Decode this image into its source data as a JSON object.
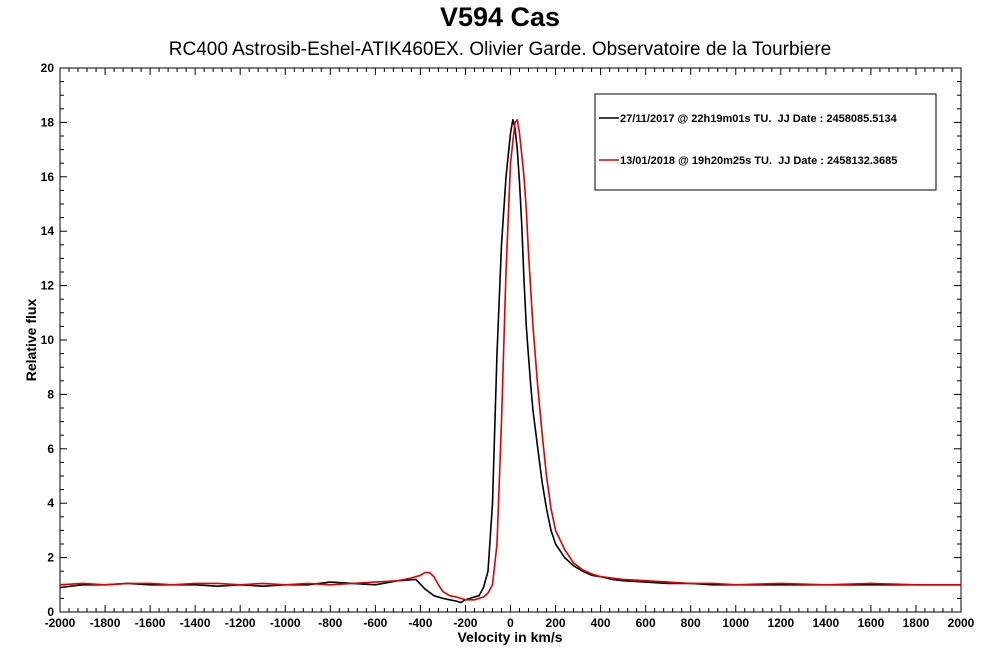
{
  "chart_data": {
    "type": "line",
    "title": "V594 Cas",
    "subtitle": "RC400 Astrosib-Eshel-ATIK460EX. Olivier Garde. Observatoire de la Tourbiere",
    "xlabel": "Velocity in km/s",
    "ylabel": "Relative flux",
    "xlim": [
      -2000,
      2000
    ],
    "ylim": [
      0,
      20
    ],
    "xticks": [
      -2000,
      -1800,
      -1600,
      -1400,
      -1200,
      -1000,
      -800,
      -600,
      -400,
      -200,
      0,
      200,
      400,
      600,
      800,
      1000,
      1200,
      1400,
      1600,
      1800,
      2000
    ],
    "yticks": [
      0,
      2,
      4,
      6,
      8,
      10,
      12,
      14,
      16,
      18,
      20
    ],
    "legend_position": "top-right",
    "series": [
      {
        "name": "27/11/2017 @ 22h19m01s TU.  JJ Date : 2458085.5134",
        "color": "#000000",
        "x": [
          -2000,
          -1900,
          -1800,
          -1700,
          -1600,
          -1500,
          -1400,
          -1300,
          -1200,
          -1100,
          -1000,
          -900,
          -800,
          -700,
          -600,
          -500,
          -420,
          -380,
          -340,
          -300,
          -270,
          -240,
          -220,
          -200,
          -180,
          -160,
          -140,
          -120,
          -100,
          -80,
          -60,
          -40,
          -20,
          0,
          10,
          20,
          30,
          40,
          50,
          60,
          70,
          80,
          90,
          100,
          120,
          140,
          160,
          180,
          200,
          240,
          280,
          320,
          360,
          400,
          450,
          500,
          600,
          700,
          800,
          900,
          1000,
          1200,
          1400,
          1600,
          1800,
          2000
        ],
        "values": [
          0.9,
          1.0,
          1.0,
          1.05,
          1.0,
          1.0,
          1.0,
          0.95,
          1.0,
          0.95,
          1.0,
          1.0,
          1.1,
          1.05,
          1.0,
          1.15,
          1.2,
          0.85,
          0.6,
          0.5,
          0.45,
          0.4,
          0.35,
          0.45,
          0.5,
          0.55,
          0.6,
          0.9,
          1.5,
          4.0,
          9.5,
          13.5,
          16.0,
          17.6,
          18.1,
          17.8,
          17.0,
          15.8,
          14.2,
          12.2,
          10.5,
          9.4,
          8.3,
          7.4,
          6.1,
          4.8,
          3.8,
          3.0,
          2.5,
          2.0,
          1.7,
          1.5,
          1.35,
          1.3,
          1.2,
          1.15,
          1.1,
          1.05,
          1.05,
          1.0,
          1.0,
          1.0,
          1.0,
          1.0,
          1.0,
          1.0
        ]
      },
      {
        "name": "13/01/2018 @ 19h20m25s TU.  JJ Date : 2458132.3685",
        "color": "#e00000",
        "x": [
          -2000,
          -1900,
          -1800,
          -1700,
          -1600,
          -1500,
          -1400,
          -1300,
          -1200,
          -1100,
          -1000,
          -900,
          -800,
          -700,
          -600,
          -500,
          -440,
          -400,
          -380,
          -360,
          -340,
          -320,
          -300,
          -270,
          -240,
          -220,
          -200,
          -180,
          -160,
          -140,
          -120,
          -100,
          -80,
          -60,
          -40,
          -20,
          0,
          20,
          30,
          40,
          50,
          60,
          70,
          80,
          90,
          100,
          120,
          140,
          160,
          180,
          200,
          240,
          280,
          320,
          360,
          400,
          450,
          500,
          600,
          700,
          800,
          900,
          1000,
          1200,
          1400,
          1600,
          1800,
          2000
        ],
        "values": [
          1.0,
          1.05,
          1.0,
          1.05,
          1.05,
          1.0,
          1.05,
          1.05,
          1.0,
          1.05,
          1.0,
          1.05,
          1.0,
          1.05,
          1.1,
          1.15,
          1.25,
          1.35,
          1.45,
          1.45,
          1.3,
          1.0,
          0.75,
          0.6,
          0.55,
          0.5,
          0.45,
          0.45,
          0.45,
          0.5,
          0.55,
          0.7,
          1.0,
          2.5,
          7.0,
          12.5,
          16.5,
          18.0,
          18.1,
          17.6,
          16.8,
          16.0,
          14.8,
          13.2,
          11.8,
          10.5,
          8.4,
          6.6,
          5.0,
          3.8,
          3.0,
          2.3,
          1.8,
          1.55,
          1.4,
          1.3,
          1.25,
          1.2,
          1.15,
          1.1,
          1.05,
          1.05,
          1.0,
          1.05,
          1.0,
          1.05,
          1.0,
          1.0
        ]
      }
    ]
  }
}
